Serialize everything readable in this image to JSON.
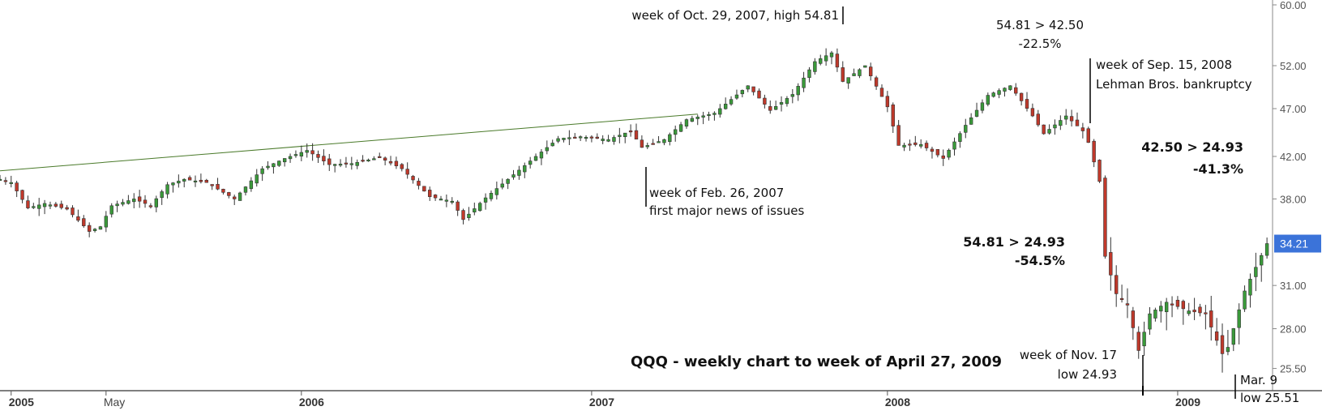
{
  "chart_data": {
    "type": "candlestick",
    "title": "QQQ - weekly chart to week of April 27, 2009",
    "y_scale": "log",
    "ylim": [
      24.2,
      60.0
    ],
    "y_ticks": [
      "60.00",
      "52.00",
      "47.00",
      "42.00",
      "38.00",
      "34.21",
      "31.00",
      "28.00",
      "25.50"
    ],
    "y_tick_values": [
      60.0,
      52.0,
      47.0,
      42.0,
      38.0,
      31.0,
      28.0,
      25.5
    ],
    "last_price": "34.21",
    "last_price_value": 34.21,
    "x_start": "2004-12-20",
    "x_end": "2009-05-04",
    "x_ticks": [
      {
        "label": "2005",
        "date": "2005-01-03",
        "year": true
      },
      {
        "label": "May",
        "date": "2005-05-02",
        "year": false
      },
      {
        "label": "2006",
        "date": "2006-01-02",
        "year": true
      },
      {
        "label": "2007",
        "date": "2007-01-01",
        "year": true
      },
      {
        "label": "2008",
        "date": "2008-01-07",
        "year": true
      },
      {
        "label": "2009",
        "date": "2009-01-05",
        "year": true
      }
    ],
    "trendline": {
      "from": [
        "2004-12-20",
        40.6
      ],
      "to": [
        "2007-05-14",
        46.4
      ]
    },
    "close_path": [
      [
        "2004-12-20",
        39.8
      ],
      [
        "2005-01-03",
        39.5
      ],
      [
        "2005-01-24",
        37.2
      ],
      [
        "2005-02-14",
        37.6
      ],
      [
        "2005-03-14",
        37.1
      ],
      [
        "2005-04-11",
        35.2
      ],
      [
        "2005-04-25",
        35.6
      ],
      [
        "2005-05-09",
        37.4
      ],
      [
        "2005-06-06",
        38.0
      ],
      [
        "2005-06-27",
        37.4
      ],
      [
        "2005-07-18",
        39.3
      ],
      [
        "2005-08-08",
        39.8
      ],
      [
        "2005-09-05",
        39.5
      ],
      [
        "2005-10-10",
        38.0
      ],
      [
        "2005-11-14",
        40.8
      ],
      [
        "2005-12-12",
        41.8
      ],
      [
        "2006-01-09",
        42.6
      ],
      [
        "2006-02-06",
        41.2
      ],
      [
        "2006-03-06",
        41.3
      ],
      [
        "2006-04-10",
        41.9
      ],
      [
        "2006-05-08",
        40.8
      ],
      [
        "2006-06-12",
        38.2
      ],
      [
        "2006-07-10",
        37.8
      ],
      [
        "2006-07-24",
        36.2
      ],
      [
        "2006-08-21",
        38.1
      ],
      [
        "2006-09-18",
        39.8
      ],
      [
        "2006-10-23",
        42.0
      ],
      [
        "2006-11-20",
        43.8
      ],
      [
        "2006-12-18",
        44.0
      ],
      [
        "2007-01-22",
        43.7
      ],
      [
        "2007-02-19",
        44.6
      ],
      [
        "2007-03-05",
        42.9
      ],
      [
        "2007-04-02",
        43.7
      ],
      [
        "2007-04-30",
        45.8
      ],
      [
        "2007-06-04",
        46.5
      ],
      [
        "2007-07-16",
        49.6
      ],
      [
        "2007-08-13",
        46.8
      ],
      [
        "2007-09-10",
        48.6
      ],
      [
        "2007-10-08",
        52.5
      ],
      [
        "2007-10-29",
        53.6
      ],
      [
        "2007-11-12",
        50.1
      ],
      [
        "2007-12-10",
        52.0
      ],
      [
        "2008-01-07",
        47.2
      ],
      [
        "2008-01-21",
        43.1
      ],
      [
        "2008-02-18",
        43.2
      ],
      [
        "2008-03-17",
        41.8
      ],
      [
        "2008-04-14",
        45.2
      ],
      [
        "2008-05-12",
        48.5
      ],
      [
        "2008-06-09",
        49.6
      ],
      [
        "2008-07-07",
        46.2
      ],
      [
        "2008-07-21",
        44.3
      ],
      [
        "2008-08-18",
        46.2
      ],
      [
        "2008-09-08",
        44.6
      ],
      [
        "2008-09-15",
        43.4
      ],
      [
        "2008-09-29",
        39.6
      ],
      [
        "2008-10-06",
        33.2
      ],
      [
        "2008-10-20",
        30.4
      ],
      [
        "2008-11-03",
        29.6
      ],
      [
        "2008-11-17",
        26.6
      ],
      [
        "2008-12-01",
        29.0
      ],
      [
        "2008-12-22",
        29.8
      ],
      [
        "2009-01-19",
        29.2
      ],
      [
        "2009-02-09",
        29.0
      ],
      [
        "2009-03-02",
        26.4
      ],
      [
        "2009-03-09",
        26.8
      ],
      [
        "2009-03-30",
        30.6
      ],
      [
        "2009-04-27",
        34.21
      ]
    ],
    "annotations": {
      "high": "week of Oct. 29, 2007, high 54.81",
      "feb_line1": "week of Feb. 26, 2007",
      "feb_line2": "first major news of issues",
      "drop1_line1": "54.81 > 42.50",
      "drop1_line2": "-22.5%",
      "lehman_line1": "week of Sep. 15, 2008",
      "lehman_line2": "Lehman Bros. bankruptcy",
      "drop2_line1": "42.50 > 24.93",
      "drop2_line2": "-41.3%",
      "drop3_line1": "54.81 > 24.93",
      "drop3_line2": "-54.5%",
      "nov_line1": "week of Nov. 17",
      "nov_line2": "low 24.93",
      "mar_line1": "Mar. 9",
      "mar_line2": "low 25.51"
    },
    "colors": {
      "up": "#3a9a3a",
      "down": "#c0392b",
      "trend": "#4a7a2a",
      "price_tag": "#3b73d9"
    }
  }
}
